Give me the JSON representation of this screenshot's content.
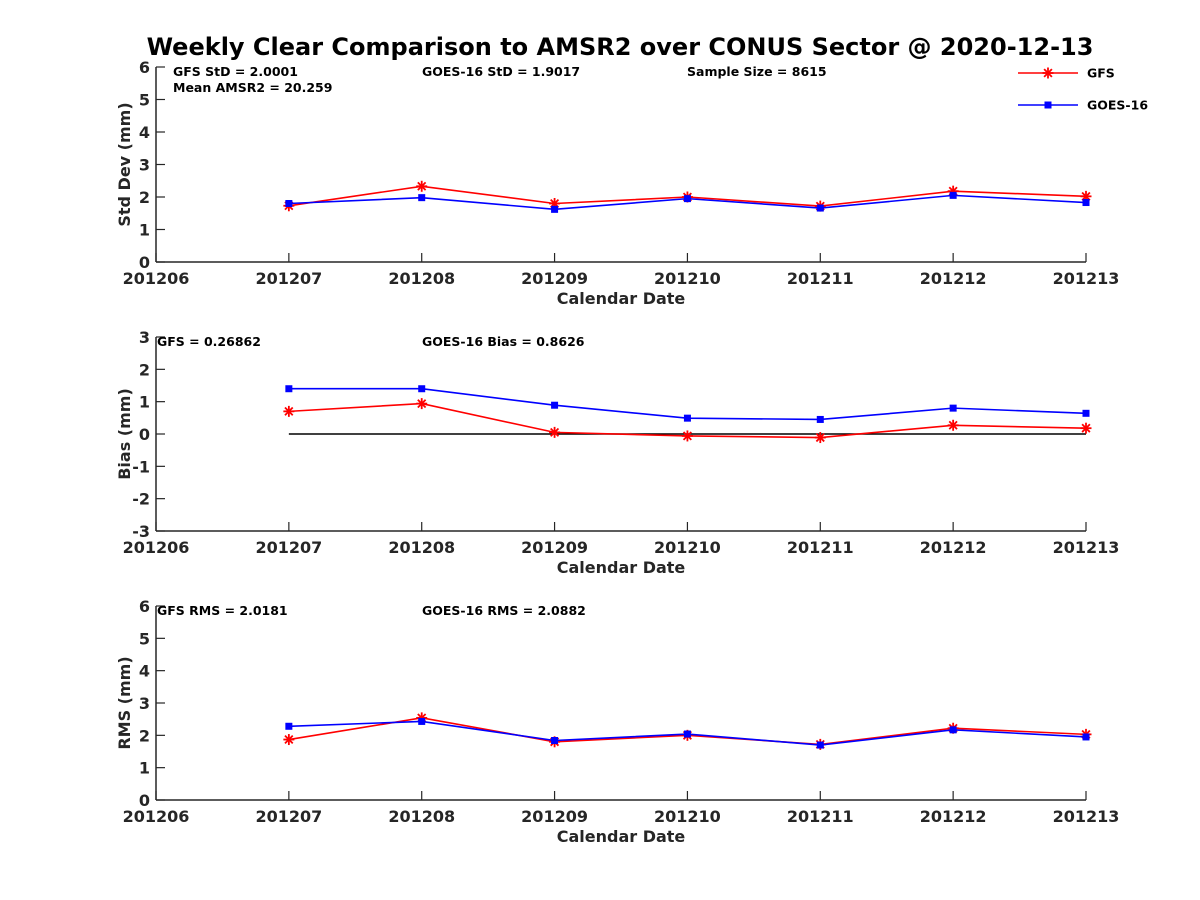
{
  "chart_data": {
    "type": "line",
    "title": "Weekly Clear Comparison to AMSR2 over CONUS Sector @ 2020-12-13",
    "legend": {
      "placement": "top-right",
      "entries": [
        "GFS",
        "GOES-16"
      ]
    },
    "categories": [
      "201206",
      "201207",
      "201208",
      "201209",
      "201210",
      "201211",
      "201212",
      "201213"
    ],
    "series_styles": [
      {
        "name": "GFS",
        "color": "#ff0000",
        "marker": "asterisk"
      },
      {
        "name": "GOES-16",
        "color": "#0000ff",
        "marker": "square"
      }
    ],
    "panels": [
      {
        "xlabel": "Calendar Date",
        "ylabel": "Std Dev (mm)",
        "ylim": [
          0,
          6
        ],
        "yticks": [
          0,
          1,
          2,
          3,
          4,
          5,
          6
        ],
        "grid": false,
        "annotations": [
          "GFS StD = 2.0001",
          "GOES-16 StD = 1.9017",
          "Sample Size = 8615",
          "Mean AMSR2 = 20.259"
        ],
        "series": [
          {
            "name": "GFS",
            "values": [
              null,
              1.73,
              2.33,
              1.8,
              2.0,
              1.72,
              2.18,
              2.02
            ]
          },
          {
            "name": "GOES-16",
            "values": [
              null,
              1.8,
              1.98,
              1.62,
              1.95,
              1.66,
              2.05,
              1.83
            ]
          }
        ]
      },
      {
        "xlabel": "Calendar Date",
        "ylabel": "Bias (mm)",
        "ylim": [
          -3,
          3
        ],
        "yticks": [
          -3,
          -2,
          -1,
          0,
          1,
          2,
          3
        ],
        "grid": false,
        "zero_line": true,
        "annotations": [
          "GFS = 0.26862",
          "GOES-16 Bias  = 0.8626"
        ],
        "series": [
          {
            "name": "GFS",
            "values": [
              null,
              0.7,
              0.94,
              0.05,
              -0.06,
              -0.11,
              0.27,
              0.18
            ]
          },
          {
            "name": "GOES-16",
            "values": [
              null,
              1.4,
              1.4,
              0.89,
              0.49,
              0.45,
              0.8,
              0.64
            ]
          }
        ]
      },
      {
        "xlabel": "Calendar Date",
        "ylabel": "RMS (mm)",
        "ylim": [
          0,
          6
        ],
        "yticks": [
          0,
          1,
          2,
          3,
          4,
          5,
          6
        ],
        "grid": false,
        "annotations": [
          "GFS RMS = 2.0181",
          "GOES-16 RMS = 2.0882"
        ],
        "series": [
          {
            "name": "GFS",
            "values": [
              null,
              1.87,
              2.54,
              1.8,
              2.0,
              1.72,
              2.22,
              2.03
            ]
          },
          {
            "name": "GOES-16",
            "values": [
              null,
              2.28,
              2.43,
              1.84,
              2.04,
              1.7,
              2.17,
              1.95
            ]
          }
        ]
      }
    ]
  }
}
